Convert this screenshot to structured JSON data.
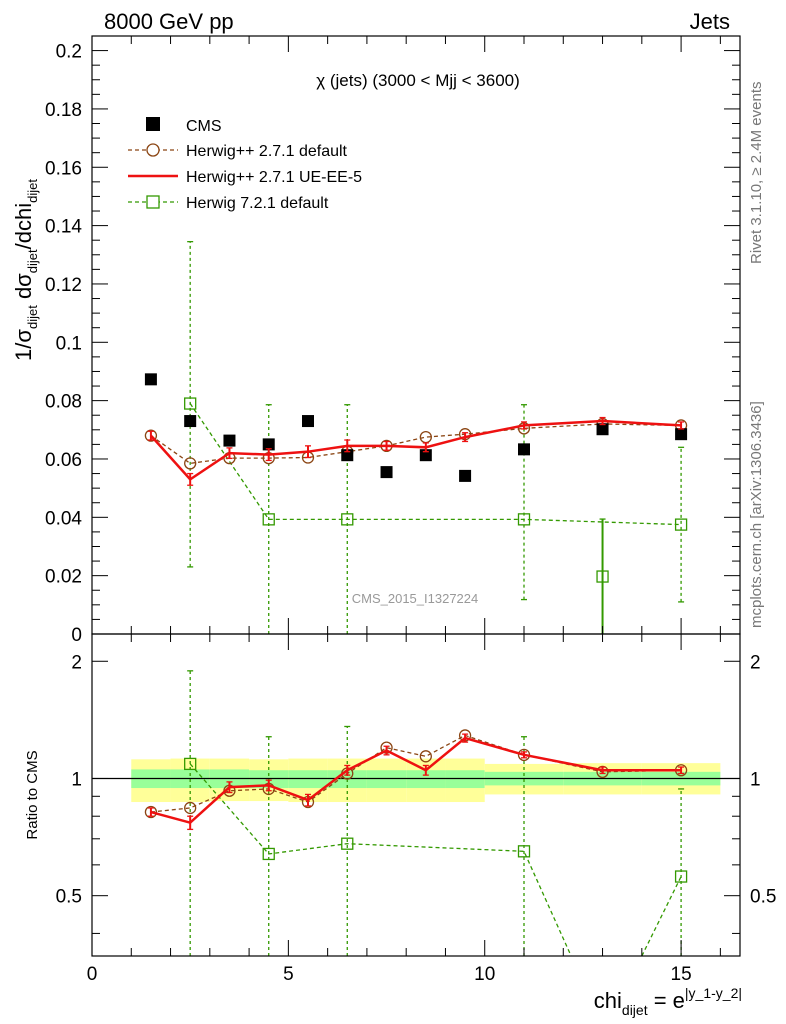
{
  "header": {
    "left": "8000 GeV pp",
    "right": "Jets"
  },
  "side_texts": {
    "rivet": "Rivet 3.1.10, ≥ 2.4M events",
    "mcplots": "mcplots.cern.ch [arXiv:1306.3436]"
  },
  "chart_data": [
    {
      "type": "scatter",
      "panel": "main",
      "title": "χ (jets) (3000 < Mjj < 3600)",
      "ylabel": "1/σ_dijet dσ_dijet/dchi_dijet",
      "watermark": "CMS_2015_I1327224",
      "xlim": [
        0,
        16.5
      ],
      "ylim": [
        0,
        0.205
      ],
      "yticks": [
        "0",
        "0.02",
        "0.04",
        "0.06",
        "0.08",
        "0.1",
        "0.12",
        "0.14",
        "0.16",
        "0.18",
        "0.2"
      ],
      "legend_position": "top-left",
      "series": [
        {
          "name": "CMS",
          "marker": "filled-square",
          "color": "#000000",
          "x": [
            1.5,
            2.5,
            3.5,
            4.5,
            5.5,
            6.5,
            7.5,
            8.5,
            9.5,
            11,
            13,
            15
          ],
          "y": [
            0.0873,
            0.073,
            0.0663,
            0.065,
            0.073,
            0.0613,
            0.0555,
            0.0613,
            0.0542,
            0.0633,
            0.0702,
            0.0685
          ]
        },
        {
          "name": "Herwig++ 2.7.1 default",
          "marker": "open-circle",
          "line": "dashed",
          "color": "#8b4513",
          "x": [
            1.5,
            2.5,
            3.5,
            4.5,
            5.5,
            6.5,
            7.5,
            8.5,
            9.5,
            11,
            13,
            15
          ],
          "y": [
            0.068,
            0.0585,
            0.0603,
            0.0603,
            0.0605,
            0.0625,
            0.0645,
            0.0675,
            0.0685,
            0.0705,
            0.072,
            0.0715
          ]
        },
        {
          "name": "Herwig++ 2.7.1 UE-EE-5",
          "marker": "none",
          "line": "solid",
          "color": "#ee1111",
          "x": [
            1.5,
            2.5,
            3.5,
            4.5,
            5.5,
            6.5,
            7.5,
            8.5,
            9.5,
            11,
            13,
            15
          ],
          "y": [
            0.068,
            0.053,
            0.062,
            0.0615,
            0.0625,
            0.0645,
            0.0645,
            0.064,
            0.0675,
            0.0715,
            0.073,
            0.0715
          ],
          "yerr": [
            0.0015,
            0.002,
            0.0018,
            0.002,
            0.002,
            0.002,
            0.0015,
            0.0015,
            0.0015,
            0.0012,
            0.0012,
            0.0012
          ]
        },
        {
          "name": "Herwig 7.2.1 default",
          "marker": "open-square",
          "line": "dashed",
          "color": "#339900",
          "x": [
            2.5,
            4.5,
            6.5,
            11,
            15
          ],
          "y": [
            0.079,
            0.0393,
            0.0393,
            0.0393,
            0.0375
          ],
          "yerr_low": [
            0.056,
            0.0393,
            0.0393,
            0.0275,
            0.0265
          ],
          "yerr_high": [
            0.0555,
            0.0393,
            0.0393,
            0.0393,
            0.0265
          ]
        },
        {
          "name": "Herwig 7.2.1 default (x=13)",
          "legend": false,
          "marker": "open-square",
          "color": "#339900",
          "x": [
            13
          ],
          "y": [
            0.0197
          ],
          "yerr_low": [
            0.0197
          ],
          "yerr_high": [
            0.0197
          ]
        }
      ]
    },
    {
      "type": "line",
      "panel": "ratio",
      "ylabel": "Ratio to CMS",
      "xlabel": "chi_dijet = e^|y_1-y_2|",
      "xlim": [
        0,
        16.5
      ],
      "ylim": [
        0.35,
        2.35
      ],
      "xticks": [
        "0",
        "5",
        "10",
        "15"
      ],
      "yticks": [
        "0.5",
        "1",
        "2"
      ],
      "reference_line": 1,
      "bands": {
        "bins": [
          [
            1,
            2
          ],
          [
            2,
            3
          ],
          [
            3,
            4
          ],
          [
            4,
            5
          ],
          [
            5,
            6
          ],
          [
            6,
            7
          ],
          [
            7,
            8
          ],
          [
            8,
            9
          ],
          [
            9,
            10
          ],
          [
            10,
            12
          ],
          [
            12,
            14
          ],
          [
            14,
            16
          ]
        ],
        "inner": [
          [
            0.945,
            1.055
          ],
          [
            0.945,
            1.055
          ],
          [
            0.945,
            1.055
          ],
          [
            0.945,
            1.05
          ],
          [
            0.945,
            1.05
          ],
          [
            0.945,
            1.05
          ],
          [
            0.945,
            1.05
          ],
          [
            0.945,
            1.05
          ],
          [
            0.945,
            1.05
          ],
          [
            0.96,
            1.04
          ],
          [
            0.96,
            1.04
          ],
          [
            0.96,
            1.04
          ]
        ],
        "outer": [
          [
            0.87,
            1.12
          ],
          [
            0.87,
            1.125
          ],
          [
            0.875,
            1.125
          ],
          [
            0.875,
            1.12
          ],
          [
            0.87,
            1.125
          ],
          [
            0.87,
            1.125
          ],
          [
            0.87,
            1.125
          ],
          [
            0.87,
            1.125
          ],
          [
            0.87,
            1.125
          ],
          [
            0.91,
            1.09
          ],
          [
            0.91,
            1.095
          ],
          [
            0.91,
            1.095
          ]
        ],
        "inner_color": "#99ff99",
        "outer_color": "#ffff99"
      },
      "series": [
        {
          "name": "Herwig++ 2.7.1 default",
          "marker": "open-circle",
          "line": "dashed",
          "color": "#8b4513",
          "x": [
            1.5,
            2.5,
            3.5,
            4.5,
            5.5,
            6.5,
            7.5,
            8.5,
            9.5,
            11,
            13,
            15
          ],
          "y": [
            0.82,
            0.84,
            0.93,
            0.94,
            0.87,
            1.03,
            1.2,
            1.14,
            1.29,
            1.15,
            1.04,
            1.05
          ]
        },
        {
          "name": "Herwig++ 2.7.1 UE-EE-5",
          "marker": "none",
          "line": "solid",
          "color": "#ee1111",
          "x": [
            1.5,
            2.5,
            3.5,
            4.5,
            5.5,
            6.5,
            7.5,
            8.5,
            9.5,
            11,
            13,
            15
          ],
          "y": [
            0.82,
            0.77,
            0.95,
            0.96,
            0.88,
            1.05,
            1.18,
            1.05,
            1.27,
            1.15,
            1.05,
            1.05
          ],
          "yerr": [
            0.02,
            0.03,
            0.03,
            0.03,
            0.03,
            0.03,
            0.03,
            0.03,
            0.03,
            0.02,
            0.02,
            0.02
          ]
        },
        {
          "name": "Herwig 7.2.1 default",
          "marker": "open-square",
          "line": "dashed",
          "color": "#339900",
          "x": [
            2.5,
            4.5,
            6.5,
            11,
            12.2
          ],
          "y": [
            1.09,
            0.64,
            0.68,
            0.65,
            0.35
          ],
          "yerr_low": [
            0.74,
            0.64,
            0.68,
            0.46,
            0
          ],
          "yerr_high": [
            0.8,
            0.64,
            0.68,
            0.63,
            0
          ]
        },
        {
          "name": "Herwig 7.2.1 default (x=14-15)",
          "marker": "open-square",
          "line": "dashed",
          "color": "#339900",
          "x": [
            14.0,
            15
          ],
          "y": [
            0.35,
            0.56
          ],
          "yerr_low": [
            0,
            0.41
          ],
          "yerr_high": [
            0,
            0.38
          ]
        }
      ]
    }
  ]
}
